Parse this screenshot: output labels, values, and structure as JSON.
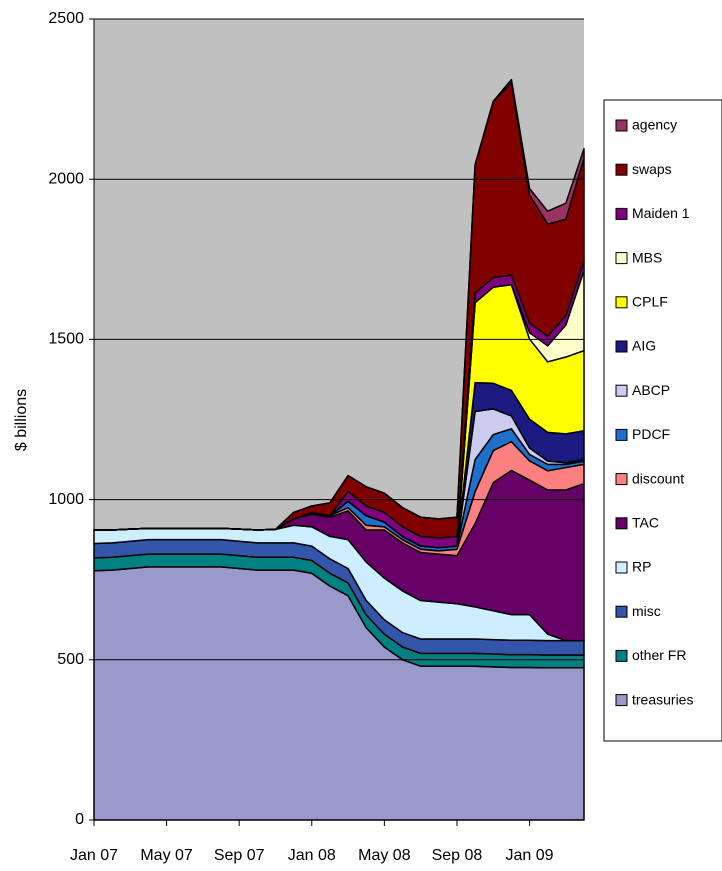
{
  "chart_data": {
    "type": "stacked_area",
    "ylabel": "$ billions",
    "categories": [
      "Jan 07",
      null,
      null,
      null,
      "May 07",
      null,
      null,
      null,
      "Sep 07",
      null,
      null,
      null,
      "Jan 08",
      null,
      null,
      null,
      "May 08",
      null,
      null,
      null,
      "Sep 08",
      null,
      null,
      null,
      "Jan 09",
      null,
      null,
      null
    ],
    "ylim": [
      0,
      2500
    ],
    "yticks": [
      0,
      500,
      1000,
      1500,
      2000,
      2500
    ],
    "grid": true,
    "series": [
      {
        "name": "treasuries",
        "color": "#9999cc",
        "values": [
          778,
          780,
          785,
          790,
          790,
          790,
          790,
          790,
          785,
          780,
          780,
          780,
          770,
          730,
          700,
          600,
          540,
          500,
          480,
          480,
          480,
          480,
          478,
          476,
          476,
          475,
          475,
          475
        ]
      },
      {
        "name": "other FR",
        "color": "#008080",
        "values": [
          40,
          40,
          40,
          40,
          40,
          40,
          40,
          40,
          40,
          40,
          40,
          40,
          40,
          40,
          40,
          40,
          40,
          40,
          40,
          40,
          40,
          40,
          40,
          40,
          40,
          40,
          40,
          40
        ]
      },
      {
        "name": "misc",
        "color": "#3355aa",
        "values": [
          45,
          45,
          45,
          45,
          45,
          45,
          45,
          45,
          45,
          45,
          45,
          45,
          45,
          45,
          45,
          45,
          45,
          45,
          45,
          45,
          45,
          45,
          45,
          45,
          45,
          45,
          45,
          45
        ]
      },
      {
        "name": "RP",
        "color": "#cceeff",
        "values": [
          42,
          40,
          38,
          35,
          35,
          35,
          35,
          35,
          38,
          40,
          42,
          55,
          60,
          70,
          90,
          120,
          130,
          130,
          120,
          115,
          110,
          100,
          90,
          80,
          80,
          20,
          0,
          0
        ]
      },
      {
        "name": "TAC",
        "color": "#660066",
        "values": [
          0,
          0,
          0,
          0,
          0,
          0,
          0,
          0,
          0,
          0,
          0,
          20,
          40,
          60,
          90,
          100,
          150,
          150,
          150,
          150,
          150,
          260,
          400,
          450,
          420,
          450,
          470,
          490
        ]
      },
      {
        "name": "discount",
        "color": "#ff8080",
        "values": [
          0,
          0,
          0,
          0,
          0,
          0,
          0,
          0,
          0,
          0,
          0,
          0,
          5,
          5,
          10,
          15,
          10,
          10,
          10,
          10,
          20,
          100,
          100,
          90,
          60,
          60,
          70,
          60
        ]
      },
      {
        "name": "PDCF",
        "color": "#1f6fcc",
        "values": [
          0,
          0,
          0,
          0,
          0,
          0,
          0,
          0,
          0,
          0,
          0,
          0,
          0,
          0,
          20,
          30,
          15,
          10,
          10,
          10,
          10,
          100,
          50,
          40,
          20,
          20,
          10,
          10
        ]
      },
      {
        "name": "ABCP",
        "color": "#ccccee",
        "values": [
          0,
          0,
          0,
          0,
          0,
          0,
          0,
          0,
          0,
          0,
          0,
          0,
          0,
          0,
          0,
          0,
          0,
          0,
          0,
          0,
          0,
          150,
          80,
          40,
          20,
          10,
          5,
          5
        ]
      },
      {
        "name": "AIG",
        "color": "#1a1a80",
        "values": [
          0,
          0,
          0,
          0,
          0,
          0,
          0,
          0,
          0,
          0,
          0,
          0,
          0,
          0,
          0,
          0,
          0,
          0,
          0,
          0,
          0,
          90,
          80,
          80,
          90,
          90,
          90,
          90
        ]
      },
      {
        "name": "CPLF",
        "color": "#ffff00",
        "values": [
          0,
          0,
          0,
          0,
          0,
          0,
          0,
          0,
          0,
          0,
          0,
          0,
          0,
          0,
          0,
          0,
          0,
          0,
          0,
          0,
          0,
          250,
          300,
          330,
          250,
          220,
          240,
          250
        ]
      },
      {
        "name": "MBS",
        "color": "#ffffcc",
        "values": [
          0,
          0,
          0,
          0,
          0,
          0,
          0,
          0,
          0,
          0,
          0,
          0,
          0,
          0,
          0,
          0,
          0,
          0,
          0,
          0,
          0,
          0,
          0,
          0,
          20,
          50,
          100,
          250
        ]
      },
      {
        "name": "Maiden 1",
        "color": "#800080",
        "values": [
          0,
          0,
          0,
          0,
          0,
          0,
          0,
          0,
          0,
          0,
          0,
          0,
          0,
          0,
          30,
          30,
          30,
          30,
          30,
          30,
          30,
          30,
          30,
          30,
          30,
          30,
          30,
          30
        ]
      },
      {
        "name": "swaps",
        "color": "#800000",
        "values": [
          0,
          0,
          0,
          0,
          0,
          0,
          0,
          0,
          0,
          0,
          0,
          20,
          20,
          40,
          50,
          60,
          60,
          60,
          60,
          60,
          60,
          400,
          550,
          600,
          400,
          350,
          300,
          320
        ]
      },
      {
        "name": "agency",
        "color": "#993366",
        "values": [
          0,
          0,
          0,
          0,
          0,
          0,
          0,
          0,
          0,
          0,
          0,
          0,
          0,
          0,
          0,
          0,
          0,
          0,
          0,
          0,
          0,
          0,
          0,
          10,
          20,
          40,
          50,
          30
        ]
      }
    ]
  }
}
